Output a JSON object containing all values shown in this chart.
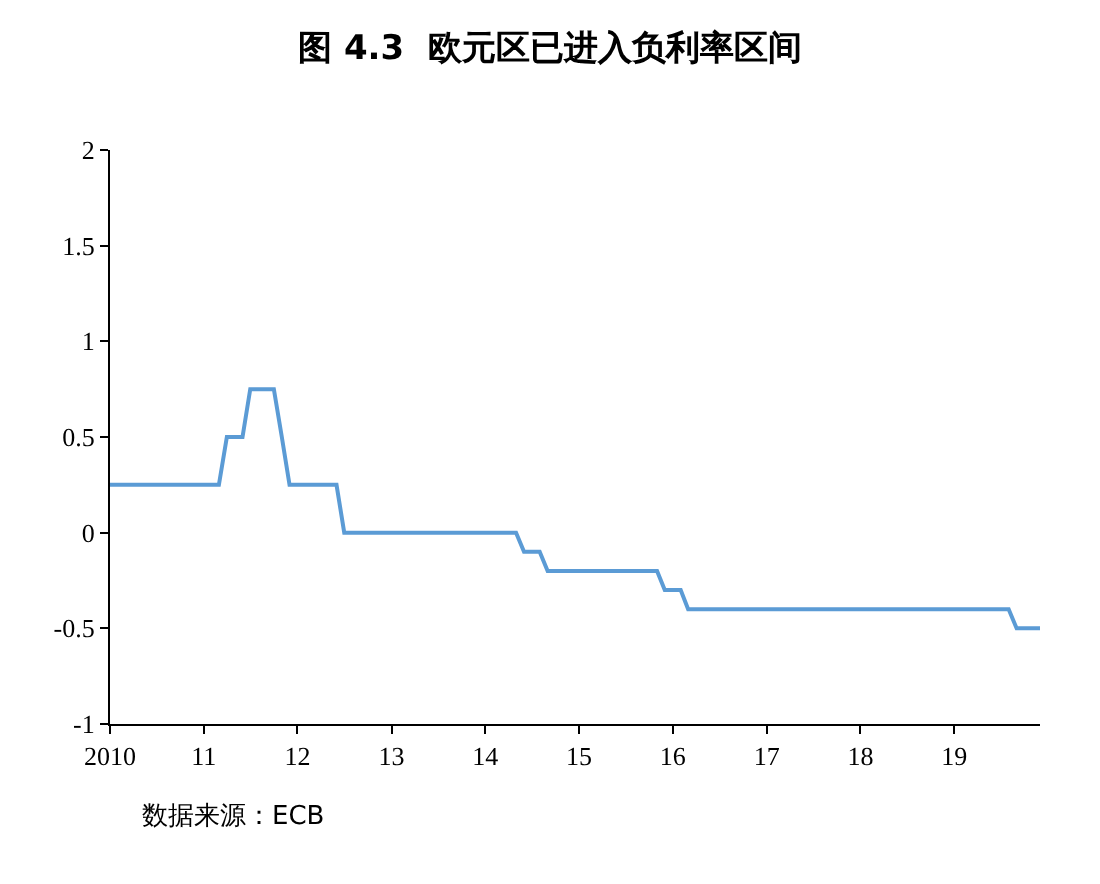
{
  "chart_data": {
    "type": "line",
    "title": "图 4.3  欧元区已进入负利率区间",
    "x": [
      "2010-01",
      "2011-03",
      "2011-04",
      "2011-06",
      "2011-07",
      "2011-10",
      "2011-11",
      "2011-12",
      "2012-06",
      "2012-07",
      "2014-05",
      "2014-06",
      "2014-08",
      "2014-09",
      "2015-11",
      "2015-12",
      "2016-02",
      "2016-03",
      "2019-08",
      "2019-09",
      "2019-12"
    ],
    "series": [
      {
        "color": "#5b9bd5",
        "values": [
          0.25,
          0.25,
          0.5,
          0.5,
          0.75,
          0.75,
          0.5,
          0.25,
          0.25,
          0,
          0,
          -0.1,
          -0.1,
          -0.2,
          -0.2,
          -0.3,
          -0.3,
          -0.4,
          -0.4,
          -0.5,
          -0.5
        ]
      }
    ],
    "xlim": [
      "2010-01",
      "2019-12"
    ],
    "xticks": [
      {
        "value": "2010-01",
        "label": "2010"
      },
      {
        "value": "2011-01",
        "label": "11"
      },
      {
        "value": "2012-01",
        "label": "12"
      },
      {
        "value": "2013-01",
        "label": "13"
      },
      {
        "value": "2014-01",
        "label": "14"
      },
      {
        "value": "2015-01",
        "label": "15"
      },
      {
        "value": "2016-01",
        "label": "16"
      },
      {
        "value": "2017-01",
        "label": "17"
      },
      {
        "value": "2018-01",
        "label": "18"
      },
      {
        "value": "2019-01",
        "label": "19"
      }
    ],
    "ylim": [
      -1,
      2
    ],
    "yticks": [
      -1,
      -0.5,
      0,
      0.5,
      1,
      1.5,
      2
    ],
    "grid": false,
    "marker": "none",
    "line_style": "solid",
    "annotations": [
      "数据来源：ECB"
    ]
  }
}
